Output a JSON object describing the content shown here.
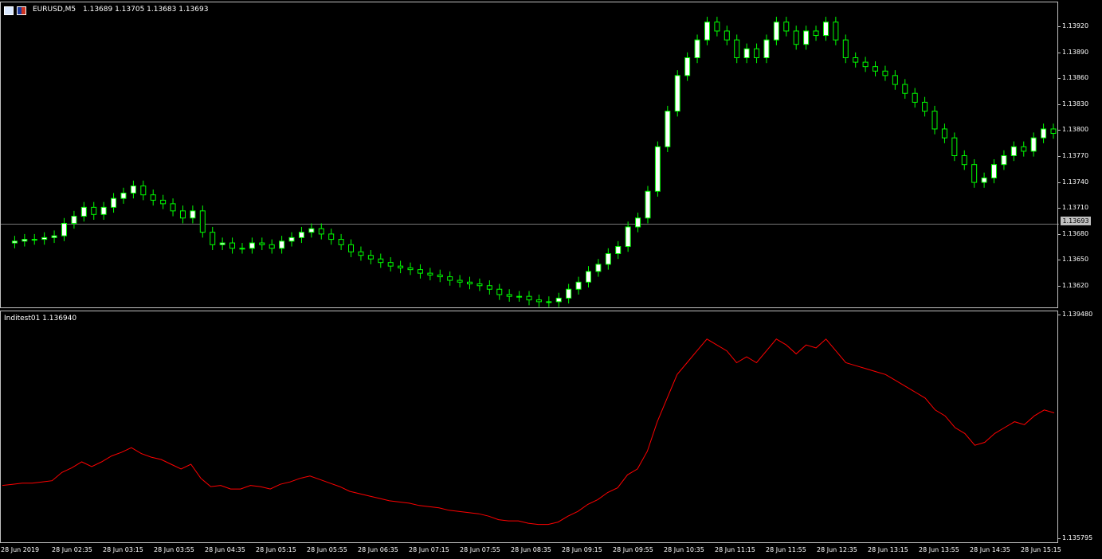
{
  "window": {
    "symbol_label": "EURUSD,M5",
    "ohlc_label": "1.13689 1.13705 1.13683 1.13693",
    "indicator_label": "Inditest01 1.136940"
  },
  "icons": [
    "chart-window-icon",
    "symbol-flag-icon"
  ],
  "colors": {
    "bull": "#ffffff",
    "bear": "#000000",
    "wick": "#00ff00",
    "indicator_line": "#ff0000",
    "current_price_line": "#c0c0c0"
  },
  "price_axis": {
    "ticks": [
      "1.13920",
      "1.13890",
      "1.13860",
      "1.13830",
      "1.13800",
      "1.13770",
      "1.13740",
      "1.13710",
      "1.13680",
      "1.13650",
      "1.13620"
    ],
    "current_price": "1.13693"
  },
  "indicator_axis": {
    "top": "1.139480",
    "bottom": "1.135795"
  },
  "time_axis": {
    "labels": [
      "28 Jun 2019",
      "28 Jun 02:35",
      "28 Jun 03:15",
      "28 Jun 03:55",
      "28 Jun 04:35",
      "28 Jun 05:15",
      "28 Jun 05:55",
      "28 Jun 06:35",
      "28 Jun 07:15",
      "28 Jun 07:55",
      "28 Jun 08:35",
      "28 Jun 09:15",
      "28 Jun 09:55",
      "28 Jun 10:35",
      "28 Jun 11:15",
      "28 Jun 11:55",
      "28 Jun 12:35",
      "28 Jun 13:15",
      "28 Jun 13:55",
      "28 Jun 14:35",
      "28 Jun 15:15"
    ]
  },
  "chart_data": {
    "type": "line",
    "title": "EURUSD,M5",
    "ylim": [
      1.136,
      1.1394
    ],
    "series": [
      {
        "name": "Inditest01",
        "values": [
          1.13672,
          1.13674,
          1.13676,
          1.13676,
          1.13678,
          1.1368,
          1.13694,
          1.13702,
          1.13712,
          1.13704,
          1.13712,
          1.13722,
          1.13728,
          1.13736,
          1.13726,
          1.1372,
          1.13716,
          1.13708,
          1.137,
          1.13708,
          1.13684,
          1.1367,
          1.13672,
          1.13666,
          1.13666,
          1.13672,
          1.1367,
          1.13666,
          1.13674,
          1.13678,
          1.13684,
          1.13688,
          1.13682,
          1.13676,
          1.1367,
          1.13662,
          1.13658,
          1.13654,
          1.1365,
          1.13646,
          1.13644,
          1.13642,
          1.13638,
          1.13636,
          1.13634,
          1.1363,
          1.13628,
          1.13626,
          1.13624,
          1.1362,
          1.13614,
          1.13612,
          1.13612,
          1.13608,
          1.13606,
          1.13606,
          1.1361,
          1.1362,
          1.13628,
          1.1364,
          1.13648,
          1.1366,
          1.13668,
          1.1369,
          1.137,
          1.1373,
          1.1378,
          1.1382,
          1.1386,
          1.1388,
          1.139,
          1.1392,
          1.1391,
          1.139,
          1.1388,
          1.1389,
          1.1388,
          1.139,
          1.1392,
          1.1391,
          1.13895,
          1.1391,
          1.13905,
          1.1392,
          1.139,
          1.1388,
          1.13875,
          1.1387,
          1.13865,
          1.1386,
          1.1385,
          1.1384,
          1.1383,
          1.1382,
          1.138,
          1.1379,
          1.1377,
          1.1376,
          1.1374,
          1.13745,
          1.1376,
          1.1377,
          1.1378,
          1.13775,
          1.1379,
          1.138,
          1.13795
        ]
      }
    ]
  }
}
